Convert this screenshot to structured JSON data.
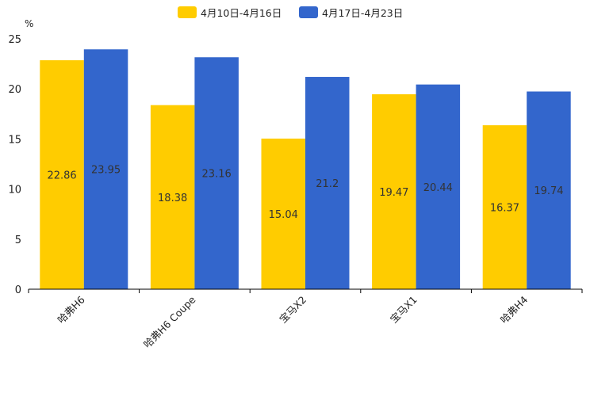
{
  "chart_data": {
    "type": "bar",
    "title": "",
    "ylabel": "%",
    "xlabel": "",
    "ylim": [
      0,
      25
    ],
    "yticks": [
      0,
      5,
      10,
      15,
      20,
      25
    ],
    "grid": false,
    "legend_position": "top-center",
    "categories": [
      "哈弗H6",
      "哈弗H6 Coupe",
      "宝马X2",
      "宝马X1",
      "哈弗H4"
    ],
    "series": [
      {
        "name": "4月10日-4月16日",
        "color": "#FFCC00",
        "values": [
          22.86,
          18.38,
          15.04,
          19.47,
          16.37
        ]
      },
      {
        "name": "4月17日-4月23日",
        "color": "#3366CC",
        "values": [
          23.95,
          23.16,
          21.2,
          20.44,
          19.74
        ]
      }
    ]
  }
}
